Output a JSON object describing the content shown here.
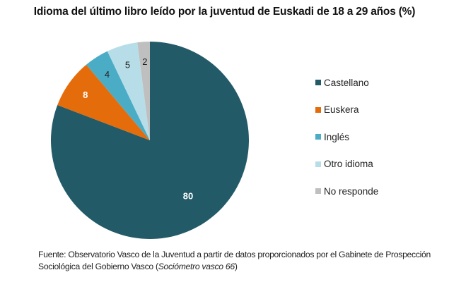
{
  "title": "Idioma del último libro leído por la juventud de Euskadi de 18 a 29 años (%)",
  "chart_data": {
    "type": "pie",
    "title": "Idioma del último libro leído por la juventud de Euskadi de 18 a 29 años (%)",
    "categories": [
      "Castellano",
      "Euskera",
      "Inglés",
      "Otro idioma",
      "No responde"
    ],
    "values": [
      80,
      8,
      4,
      5,
      2
    ],
    "colors": [
      "#235a68",
      "#e46c0a",
      "#4bacc6",
      "#b7dee8",
      "#bfbfbf"
    ],
    "label_colors": [
      "#ffffff",
      "#ffffff",
      "#222222",
      "#222222",
      "#222222"
    ],
    "legend_position": "right",
    "start_angle": "12 o'clock, clockwise"
  },
  "legend": {
    "items": [
      {
        "label": "Castellano",
        "color": "#235a68"
      },
      {
        "label": "Euskera",
        "color": "#e46c0a"
      },
      {
        "label": "Inglés",
        "color": "#4bacc6"
      },
      {
        "label": "Otro idioma",
        "color": "#b7dee8"
      },
      {
        "label": "No responde",
        "color": "#bfbfbf"
      }
    ]
  },
  "source": {
    "prefix": "Fuente: Observatorio Vasco de la Juventud a partir de datos proporcionados por el Gabinete de Prospección Sociológica del Gobierno Vasco (",
    "italic": "Sociómetro vasco 66",
    "suffix": ")"
  }
}
